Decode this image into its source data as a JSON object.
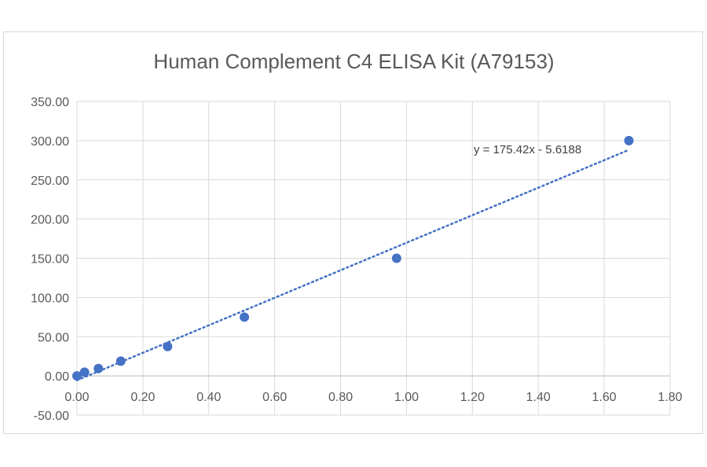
{
  "chart_data": {
    "type": "scatter",
    "title": "Human Complement C4 ELISA Kit (A79153)",
    "xlabel": "",
    "ylabel": "",
    "xlim": [
      0,
      1.8
    ],
    "ylim": [
      -50,
      350
    ],
    "x_ticks": [
      0,
      0.2,
      0.4,
      0.6,
      0.8,
      1.0,
      1.2,
      1.4,
      1.6,
      1.8
    ],
    "y_ticks": [
      -50,
      0,
      50,
      100,
      150,
      200,
      250,
      300,
      350
    ],
    "x_tick_labels": [
      "0.00",
      "0.20",
      "0.40",
      "0.60",
      "0.80",
      "1.00",
      "1.20",
      "1.40",
      "1.60",
      "1.80"
    ],
    "y_tick_labels": [
      "-50.00",
      "0.00",
      "50.00",
      "100.00",
      "150.00",
      "200.00",
      "250.00",
      "300.00",
      "350.00"
    ],
    "grid": true,
    "series": [
      {
        "x": [
          0.0,
          0.023,
          0.065,
          0.133,
          0.275,
          0.508,
          0.97,
          1.675
        ],
        "y": [
          0,
          4.7,
          9.4,
          18.8,
          37.5,
          75,
          150,
          300
        ],
        "color": "#4472c4"
      }
    ],
    "trendline": {
      "type": "linear",
      "slope": 175.42,
      "intercept": -5.6188,
      "equation_label": "y = 175.42x - 5.6188",
      "style": "dotted",
      "color": "#4472c4"
    }
  }
}
